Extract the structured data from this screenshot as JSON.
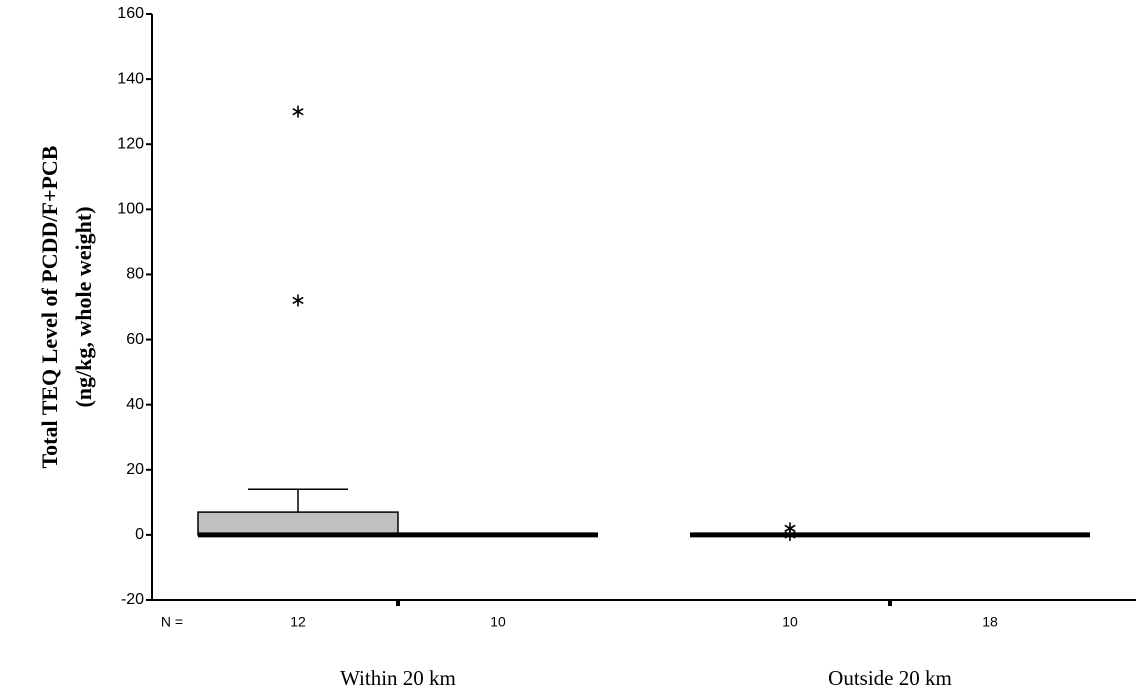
{
  "chart_data": {
    "type": "box",
    "y_title": [
      "Total TEQ Level of PCDD/F+PCB",
      "(ng/kg, whole weight)"
    ],
    "categories": [
      "Within 20 km",
      "Outside 20 km"
    ],
    "n_label": "N =",
    "ylim": [
      -20,
      160
    ],
    "yticks": [
      -20,
      0,
      20,
      40,
      60,
      80,
      100,
      120,
      140,
      160
    ],
    "color": "#c0c0c0",
    "series": [
      {
        "boxes": [
          {
            "min": 0,
            "q1": 0,
            "median": 0,
            "q3": 7,
            "max": 14,
            "outliers": [
              130,
              72
            ],
            "n": 12
          },
          {
            "min": 0,
            "q1": 0,
            "median": 0,
            "q3": 0,
            "max": 0,
            "outliers": [
              2,
              0
            ],
            "n": 10
          }
        ]
      },
      {
        "boxes": [
          {
            "min": 0,
            "q1": 0,
            "median": 0,
            "q3": 0,
            "max": 0,
            "outliers": [],
            "n": 10
          },
          {
            "min": 0,
            "q1": 0,
            "median": 0,
            "q3": 0,
            "max": 0,
            "outliers": [],
            "n": 18
          }
        ]
      }
    ]
  }
}
